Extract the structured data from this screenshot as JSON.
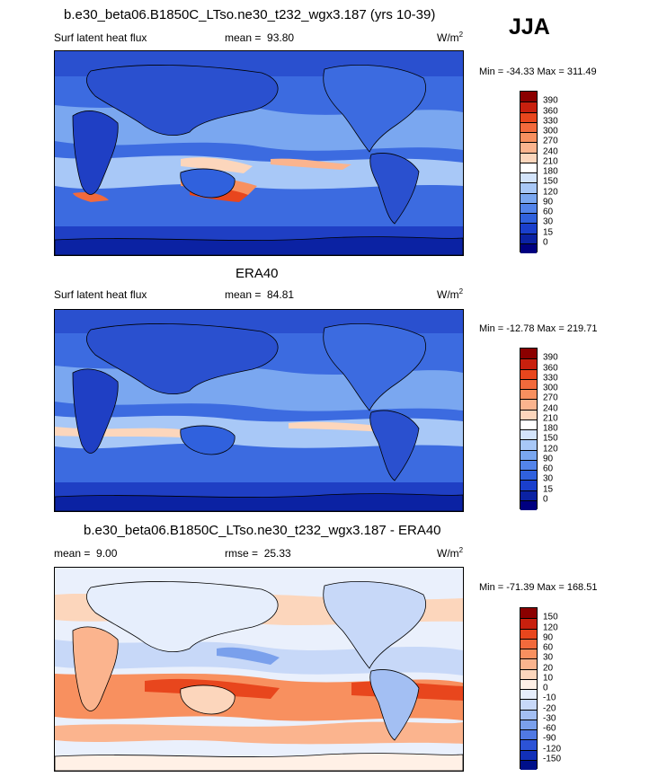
{
  "header": {
    "run_title": "b.e30_beta06.B1850C_LTso.ne30_t232_wgx3.187 (yrs 10-39)",
    "season": "JJA"
  },
  "panels": [
    {
      "id": "model",
      "variable": "Surf latent heat flux",
      "stat_label": "mean =",
      "stat_value": "93.80",
      "units": "W/m",
      "units_sup": "2",
      "minmax": "Min = -34.33 Max = 311.49",
      "levels": [
        "390",
        "360",
        "330",
        "300",
        "270",
        "240",
        "210",
        "180",
        "150",
        "120",
        "90",
        "60",
        "30",
        "15",
        "0"
      ],
      "colors": [
        "#8b0000",
        "#c8200e",
        "#e8461d",
        "#f26a3c",
        "#f8905f",
        "#fbb48e",
        "#fcd6bc",
        "#ffffff",
        "#d3e4fb",
        "#a8c8f7",
        "#7aa7f0",
        "#5384ea",
        "#3061dd",
        "#1a3fcc",
        "#0b22a3",
        "#000080"
      ]
    },
    {
      "id": "obs",
      "heading": "ERA40",
      "variable": "Surf latent heat flux",
      "stat_label": "mean =",
      "stat_value": "84.81",
      "units": "W/m",
      "units_sup": "2",
      "minmax": "Min = -12.78 Max = 219.71",
      "levels": [
        "390",
        "360",
        "330",
        "300",
        "270",
        "240",
        "210",
        "180",
        "150",
        "120",
        "90",
        "60",
        "30",
        "15",
        "0"
      ],
      "colors": [
        "#8b0000",
        "#c8200e",
        "#e8461d",
        "#f26a3c",
        "#f8905f",
        "#fbb48e",
        "#fcd6bc",
        "#ffffff",
        "#d3e4fb",
        "#a8c8f7",
        "#7aa7f0",
        "#5384ea",
        "#3061dd",
        "#1a3fcc",
        "#0b22a3",
        "#000080"
      ]
    },
    {
      "id": "diff",
      "heading": "b.e30_beta06.B1850C_LTso.ne30_t232_wgx3.187 - ERA40",
      "stat_label": "mean =",
      "stat_value": "9.00",
      "stat2_label": "rmse =",
      "stat2_value": "25.33",
      "units": "W/m",
      "units_sup": "2",
      "minmax": "Min = -71.39 Max = 168.51",
      "levels": [
        "150",
        "120",
        "90",
        "60",
        "30",
        "20",
        "10",
        "0",
        "-10",
        "-20",
        "-30",
        "-60",
        "-90",
        "-120",
        "-150"
      ],
      "colors": [
        "#8b0000",
        "#c8200e",
        "#e8461d",
        "#f26a3c",
        "#f8905f",
        "#fbb48e",
        "#fcd6bc",
        "#fff0e6",
        "#e6eefc",
        "#c7d8f8",
        "#a3bff3",
        "#7aa0ec",
        "#5079e3",
        "#2c53d6",
        "#1230b8",
        "#00108a"
      ]
    }
  ]
}
